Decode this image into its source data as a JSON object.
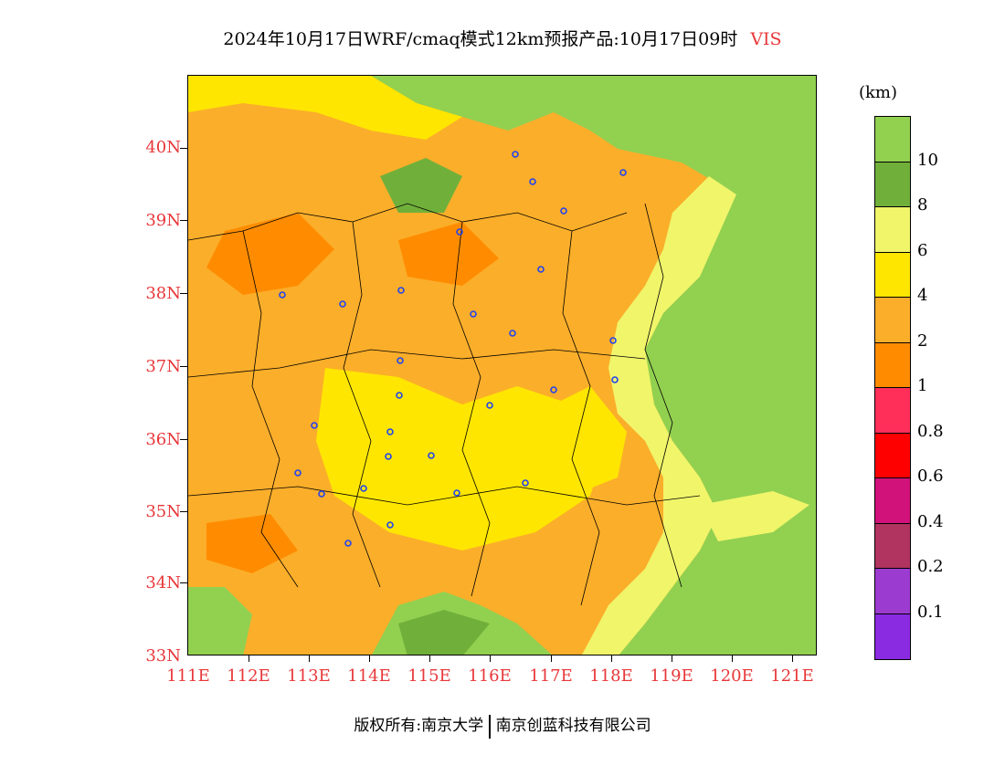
{
  "title": {
    "text": "2024年10月17日WRF/cmaq模式12km预报产品:10月17日09时",
    "variable": "VIS"
  },
  "map": {
    "lat_labels": [
      "40N",
      "39N",
      "38N",
      "37N",
      "36N",
      "35N",
      "34N",
      "33N"
    ],
    "lon_labels": [
      "111E",
      "112E",
      "113E",
      "114E",
      "115E",
      "116E",
      "117E",
      "118E",
      "119E",
      "120E",
      "121E"
    ],
    "colors": {
      "vis_gt10": "#92d050",
      "vis_8_10": "#70b03a",
      "vis_6_8": "#f0f56a",
      "vis_4_6": "#ffe600",
      "vis_2_4": "#fbae2a",
      "vis_1_2": "#ff8c00",
      "boundary": "#000000",
      "station": "#2244ee"
    }
  },
  "legend": {
    "unit": "(km)",
    "labels": [
      "10",
      "8",
      "6",
      "4",
      "2",
      "1",
      "0.8",
      "0.6",
      "0.4",
      "0.2",
      "0.1"
    ],
    "colors": [
      "#92d050",
      "#70b03a",
      "#f0f56a",
      "#ffe600",
      "#fbae2a",
      "#ff8c00",
      "#ff2f5a",
      "#ff0000",
      "#d1127b",
      "#b0345f",
      "#9b3bd0",
      "#8a2be2"
    ]
  },
  "footer": {
    "left": "版权所有:南京大学",
    "right": "南京创蓝科技有限公司"
  }
}
